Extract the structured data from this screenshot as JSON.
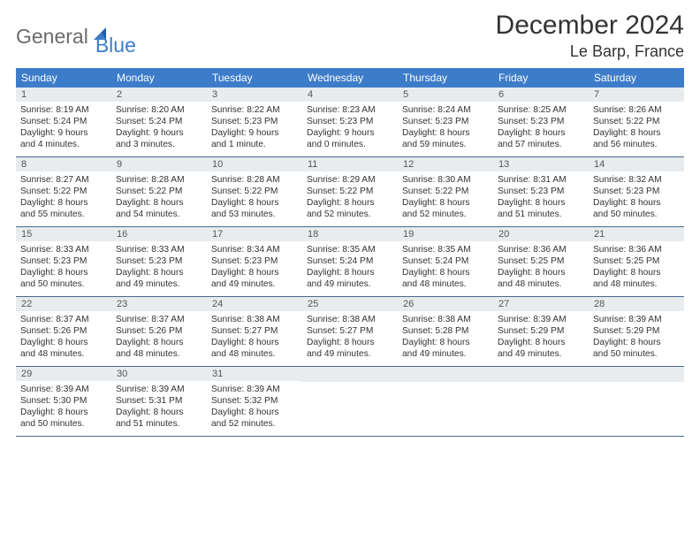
{
  "logo": {
    "part1": "General",
    "part2": "Blue"
  },
  "header": {
    "title": "December 2024",
    "location": "Le Barp, France"
  },
  "colors": {
    "header_bg": "#3d7cc9",
    "band_bg": "#e9ecef",
    "rule": "#4a6a8a"
  },
  "daysOfWeek": [
    "Sunday",
    "Monday",
    "Tuesday",
    "Wednesday",
    "Thursday",
    "Friday",
    "Saturday"
  ],
  "weeks": [
    [
      {
        "n": "1",
        "sunrise": "Sunrise: 8:19 AM",
        "sunset": "Sunset: 5:24 PM",
        "dl1": "Daylight: 9 hours",
        "dl2": "and 4 minutes."
      },
      {
        "n": "2",
        "sunrise": "Sunrise: 8:20 AM",
        "sunset": "Sunset: 5:24 PM",
        "dl1": "Daylight: 9 hours",
        "dl2": "and 3 minutes."
      },
      {
        "n": "3",
        "sunrise": "Sunrise: 8:22 AM",
        "sunset": "Sunset: 5:23 PM",
        "dl1": "Daylight: 9 hours",
        "dl2": "and 1 minute."
      },
      {
        "n": "4",
        "sunrise": "Sunrise: 8:23 AM",
        "sunset": "Sunset: 5:23 PM",
        "dl1": "Daylight: 9 hours",
        "dl2": "and 0 minutes."
      },
      {
        "n": "5",
        "sunrise": "Sunrise: 8:24 AM",
        "sunset": "Sunset: 5:23 PM",
        "dl1": "Daylight: 8 hours",
        "dl2": "and 59 minutes."
      },
      {
        "n": "6",
        "sunrise": "Sunrise: 8:25 AM",
        "sunset": "Sunset: 5:23 PM",
        "dl1": "Daylight: 8 hours",
        "dl2": "and 57 minutes."
      },
      {
        "n": "7",
        "sunrise": "Sunrise: 8:26 AM",
        "sunset": "Sunset: 5:22 PM",
        "dl1": "Daylight: 8 hours",
        "dl2": "and 56 minutes."
      }
    ],
    [
      {
        "n": "8",
        "sunrise": "Sunrise: 8:27 AM",
        "sunset": "Sunset: 5:22 PM",
        "dl1": "Daylight: 8 hours",
        "dl2": "and 55 minutes."
      },
      {
        "n": "9",
        "sunrise": "Sunrise: 8:28 AM",
        "sunset": "Sunset: 5:22 PM",
        "dl1": "Daylight: 8 hours",
        "dl2": "and 54 minutes."
      },
      {
        "n": "10",
        "sunrise": "Sunrise: 8:28 AM",
        "sunset": "Sunset: 5:22 PM",
        "dl1": "Daylight: 8 hours",
        "dl2": "and 53 minutes."
      },
      {
        "n": "11",
        "sunrise": "Sunrise: 8:29 AM",
        "sunset": "Sunset: 5:22 PM",
        "dl1": "Daylight: 8 hours",
        "dl2": "and 52 minutes."
      },
      {
        "n": "12",
        "sunrise": "Sunrise: 8:30 AM",
        "sunset": "Sunset: 5:22 PM",
        "dl1": "Daylight: 8 hours",
        "dl2": "and 52 minutes."
      },
      {
        "n": "13",
        "sunrise": "Sunrise: 8:31 AM",
        "sunset": "Sunset: 5:23 PM",
        "dl1": "Daylight: 8 hours",
        "dl2": "and 51 minutes."
      },
      {
        "n": "14",
        "sunrise": "Sunrise: 8:32 AM",
        "sunset": "Sunset: 5:23 PM",
        "dl1": "Daylight: 8 hours",
        "dl2": "and 50 minutes."
      }
    ],
    [
      {
        "n": "15",
        "sunrise": "Sunrise: 8:33 AM",
        "sunset": "Sunset: 5:23 PM",
        "dl1": "Daylight: 8 hours",
        "dl2": "and 50 minutes."
      },
      {
        "n": "16",
        "sunrise": "Sunrise: 8:33 AM",
        "sunset": "Sunset: 5:23 PM",
        "dl1": "Daylight: 8 hours",
        "dl2": "and 49 minutes."
      },
      {
        "n": "17",
        "sunrise": "Sunrise: 8:34 AM",
        "sunset": "Sunset: 5:23 PM",
        "dl1": "Daylight: 8 hours",
        "dl2": "and 49 minutes."
      },
      {
        "n": "18",
        "sunrise": "Sunrise: 8:35 AM",
        "sunset": "Sunset: 5:24 PM",
        "dl1": "Daylight: 8 hours",
        "dl2": "and 49 minutes."
      },
      {
        "n": "19",
        "sunrise": "Sunrise: 8:35 AM",
        "sunset": "Sunset: 5:24 PM",
        "dl1": "Daylight: 8 hours",
        "dl2": "and 48 minutes."
      },
      {
        "n": "20",
        "sunrise": "Sunrise: 8:36 AM",
        "sunset": "Sunset: 5:25 PM",
        "dl1": "Daylight: 8 hours",
        "dl2": "and 48 minutes."
      },
      {
        "n": "21",
        "sunrise": "Sunrise: 8:36 AM",
        "sunset": "Sunset: 5:25 PM",
        "dl1": "Daylight: 8 hours",
        "dl2": "and 48 minutes."
      }
    ],
    [
      {
        "n": "22",
        "sunrise": "Sunrise: 8:37 AM",
        "sunset": "Sunset: 5:26 PM",
        "dl1": "Daylight: 8 hours",
        "dl2": "and 48 minutes."
      },
      {
        "n": "23",
        "sunrise": "Sunrise: 8:37 AM",
        "sunset": "Sunset: 5:26 PM",
        "dl1": "Daylight: 8 hours",
        "dl2": "and 48 minutes."
      },
      {
        "n": "24",
        "sunrise": "Sunrise: 8:38 AM",
        "sunset": "Sunset: 5:27 PM",
        "dl1": "Daylight: 8 hours",
        "dl2": "and 48 minutes."
      },
      {
        "n": "25",
        "sunrise": "Sunrise: 8:38 AM",
        "sunset": "Sunset: 5:27 PM",
        "dl1": "Daylight: 8 hours",
        "dl2": "and 49 minutes."
      },
      {
        "n": "26",
        "sunrise": "Sunrise: 8:38 AM",
        "sunset": "Sunset: 5:28 PM",
        "dl1": "Daylight: 8 hours",
        "dl2": "and 49 minutes."
      },
      {
        "n": "27",
        "sunrise": "Sunrise: 8:39 AM",
        "sunset": "Sunset: 5:29 PM",
        "dl1": "Daylight: 8 hours",
        "dl2": "and 49 minutes."
      },
      {
        "n": "28",
        "sunrise": "Sunrise: 8:39 AM",
        "sunset": "Sunset: 5:29 PM",
        "dl1": "Daylight: 8 hours",
        "dl2": "and 50 minutes."
      }
    ],
    [
      {
        "n": "29",
        "sunrise": "Sunrise: 8:39 AM",
        "sunset": "Sunset: 5:30 PM",
        "dl1": "Daylight: 8 hours",
        "dl2": "and 50 minutes."
      },
      {
        "n": "30",
        "sunrise": "Sunrise: 8:39 AM",
        "sunset": "Sunset: 5:31 PM",
        "dl1": "Daylight: 8 hours",
        "dl2": "and 51 minutes."
      },
      {
        "n": "31",
        "sunrise": "Sunrise: 8:39 AM",
        "sunset": "Sunset: 5:32 PM",
        "dl1": "Daylight: 8 hours",
        "dl2": "and 52 minutes."
      },
      null,
      null,
      null,
      null
    ]
  ]
}
